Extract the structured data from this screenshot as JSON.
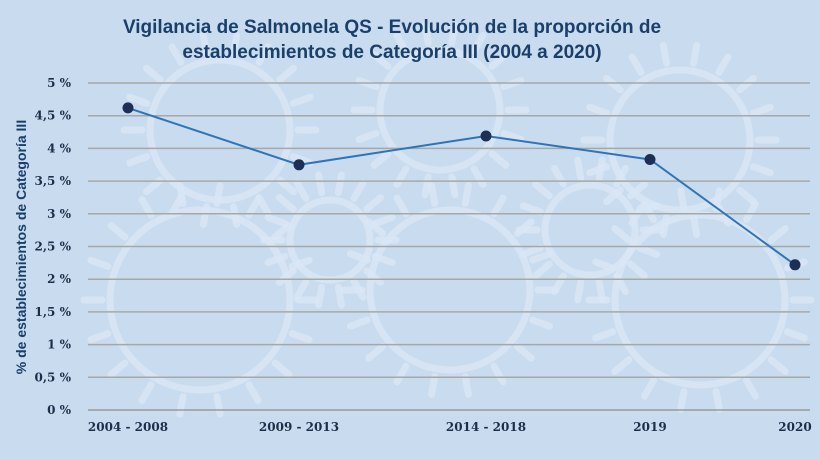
{
  "chart_data": {
    "type": "line",
    "title": "Vigilancia de Salmonela QS - Evolución de la proporción de establecimientos de Categoría III (2004 a 2020)",
    "title_lines": [
      "Vigilancia de Salmonela QS - Evolución de la proporción de",
      "establecimientos de Categoría III (2004 a 2020)"
    ],
    "xlabel": "",
    "ylabel": "% de establecimientos de Categoría III",
    "categories": [
      "2004 - 2008",
      "2009 - 2013",
      "2014 - 2018",
      "2019",
      "2020"
    ],
    "series": [
      {
        "values": [
          4.62,
          3.75,
          4.19,
          3.83,
          2.22
        ]
      }
    ],
    "ylim": [
      0,
      5
    ],
    "yticks": [
      "0 %",
      "0,5 %",
      "1 %",
      "1,5 %",
      "2 %",
      "2,5 %",
      "3 %",
      "3,5 %",
      "4 %",
      "4,5 %",
      "5 %"
    ],
    "grid": true,
    "legend": "none",
    "colors": {
      "background": "#c9dcef",
      "line": "#2f74b7",
      "marker": "#1d2f56",
      "title": "#1b3f6b"
    }
  }
}
